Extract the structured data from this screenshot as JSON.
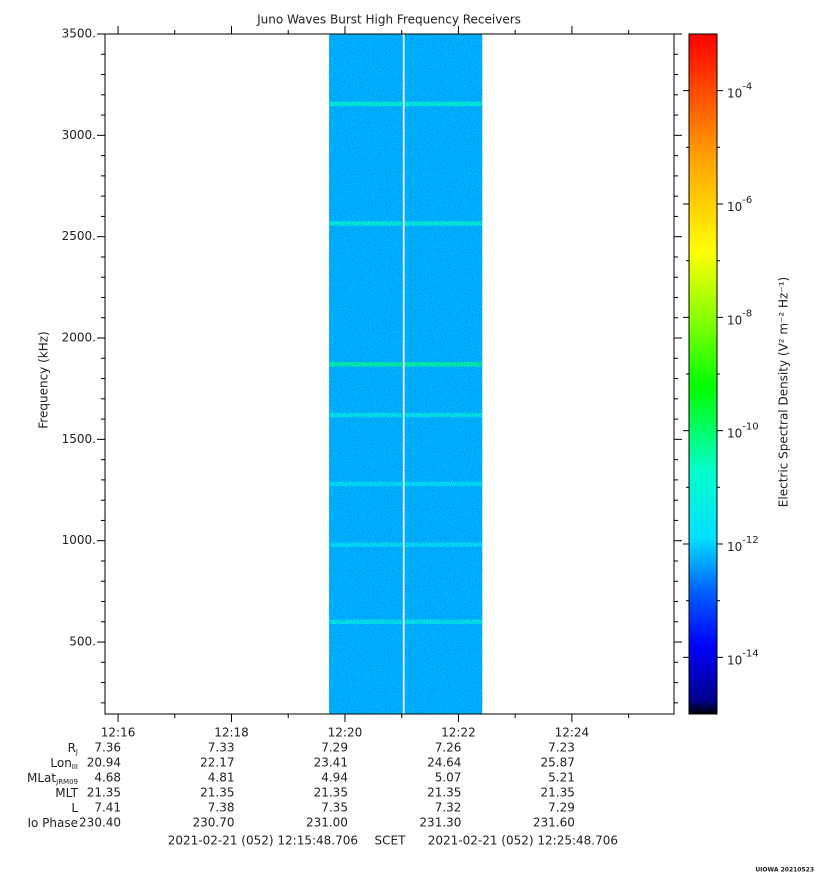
{
  "chart_data": {
    "type": "spectrogram",
    "title": "Juno Waves Burst High Frequency Receivers",
    "ylabel": "Frequency (kHz)",
    "ylim": [
      145,
      3500
    ],
    "yticks": [
      {
        "value": 500,
        "label": "500."
      },
      {
        "value": 1000,
        "label": "1000."
      },
      {
        "value": 1500,
        "label": "1500."
      },
      {
        "value": 2000,
        "label": "2000."
      },
      {
        "value": 2500,
        "label": "2500."
      },
      {
        "value": 3000,
        "label": "3000."
      },
      {
        "value": 3500,
        "label": "3500."
      }
    ],
    "yminorticks": [
      200,
      300,
      400,
      600,
      700,
      800,
      900,
      1100,
      1200,
      1300,
      1400,
      1600,
      1700,
      1800,
      1900,
      2100,
      2200,
      2300,
      2400,
      2600,
      2700,
      2800,
      2900,
      3100,
      3200,
      3300,
      3400
    ],
    "xlim": [
      735.77,
      745.8
    ],
    "xticks": [
      {
        "value": 736,
        "label": "12:16"
      },
      {
        "value": 738,
        "label": "12:18"
      },
      {
        "value": 740,
        "label": "12:20"
      },
      {
        "value": 742,
        "label": "12:22"
      },
      {
        "value": 744,
        "label": "12:24"
      }
    ],
    "xminorticks": [
      737,
      739,
      741,
      743,
      745
    ],
    "segments": [
      {
        "start": 739.72,
        "end": 741.02
      },
      {
        "start": 741.05,
        "end": 742.42
      }
    ],
    "background_level": -12.2,
    "band_width": 22,
    "bands": [
      {
        "freq": 3155,
        "level": -10.8
      },
      {
        "freq": 2565,
        "level": -10.9
      },
      {
        "freq": 1870,
        "level": -10.3
      },
      {
        "freq": 1620,
        "level": -11.3
      },
      {
        "freq": 1280,
        "level": -11.6
      },
      {
        "freq": 980,
        "level": -11.7
      },
      {
        "freq": 600,
        "level": -11.3
      }
    ],
    "colorbar": {
      "label": "Electric Spectral Density (V² m⁻² Hz⁻¹)",
      "base": "10",
      "zlim": [
        -15,
        -3
      ],
      "zticks": [
        -14,
        -12,
        -10,
        -8,
        -6,
        -4
      ],
      "zminorticks": [
        -13,
        -11,
        -9,
        -7,
        -5
      ],
      "colormap": [
        [
          0,
          "#000000"
        ],
        [
          0.02,
          "#00008b"
        ],
        [
          0.1,
          "#0000ff"
        ],
        [
          0.18,
          "#0060ff"
        ],
        [
          0.26,
          "#00e0ff"
        ],
        [
          0.36,
          "#00ffc8"
        ],
        [
          0.48,
          "#00ff00"
        ],
        [
          0.6,
          "#a0ff00"
        ],
        [
          0.68,
          "#ffff00"
        ],
        [
          0.82,
          "#ffa000"
        ],
        [
          1,
          "#ff0000"
        ]
      ]
    }
  },
  "ephemeris": {
    "rows": [
      {
        "label": "R",
        "sub": "J",
        "values": [
          "7.36",
          "7.33",
          "7.29",
          "7.26",
          "7.23"
        ]
      },
      {
        "label": "Lon",
        "sub": "III",
        "values": [
          "20.94",
          "22.17",
          "23.41",
          "24.64",
          "25.87"
        ]
      },
      {
        "label": "MLat",
        "sub": "JRM09",
        "values": [
          "4.68",
          "4.81",
          "4.94",
          "5.07",
          "5.21"
        ]
      },
      {
        "label": "MLT",
        "values": [
          "21.35",
          "21.35",
          "21.35",
          "21.35",
          "21.35"
        ]
      },
      {
        "label": "L",
        "values": [
          "7.41",
          "7.38",
          "7.35",
          "7.32",
          "7.29"
        ]
      },
      {
        "label": "Io Phase",
        "values": [
          "230.40",
          "230.70",
          "231.00",
          "231.30",
          "231.60"
        ]
      }
    ]
  },
  "footer": {
    "start": "2021-02-21 (052) 12:15:48.706",
    "center": "SCET",
    "end": "2021-02-21 (052) 12:25:48.706"
  },
  "credit": "UIOWA 20210523"
}
